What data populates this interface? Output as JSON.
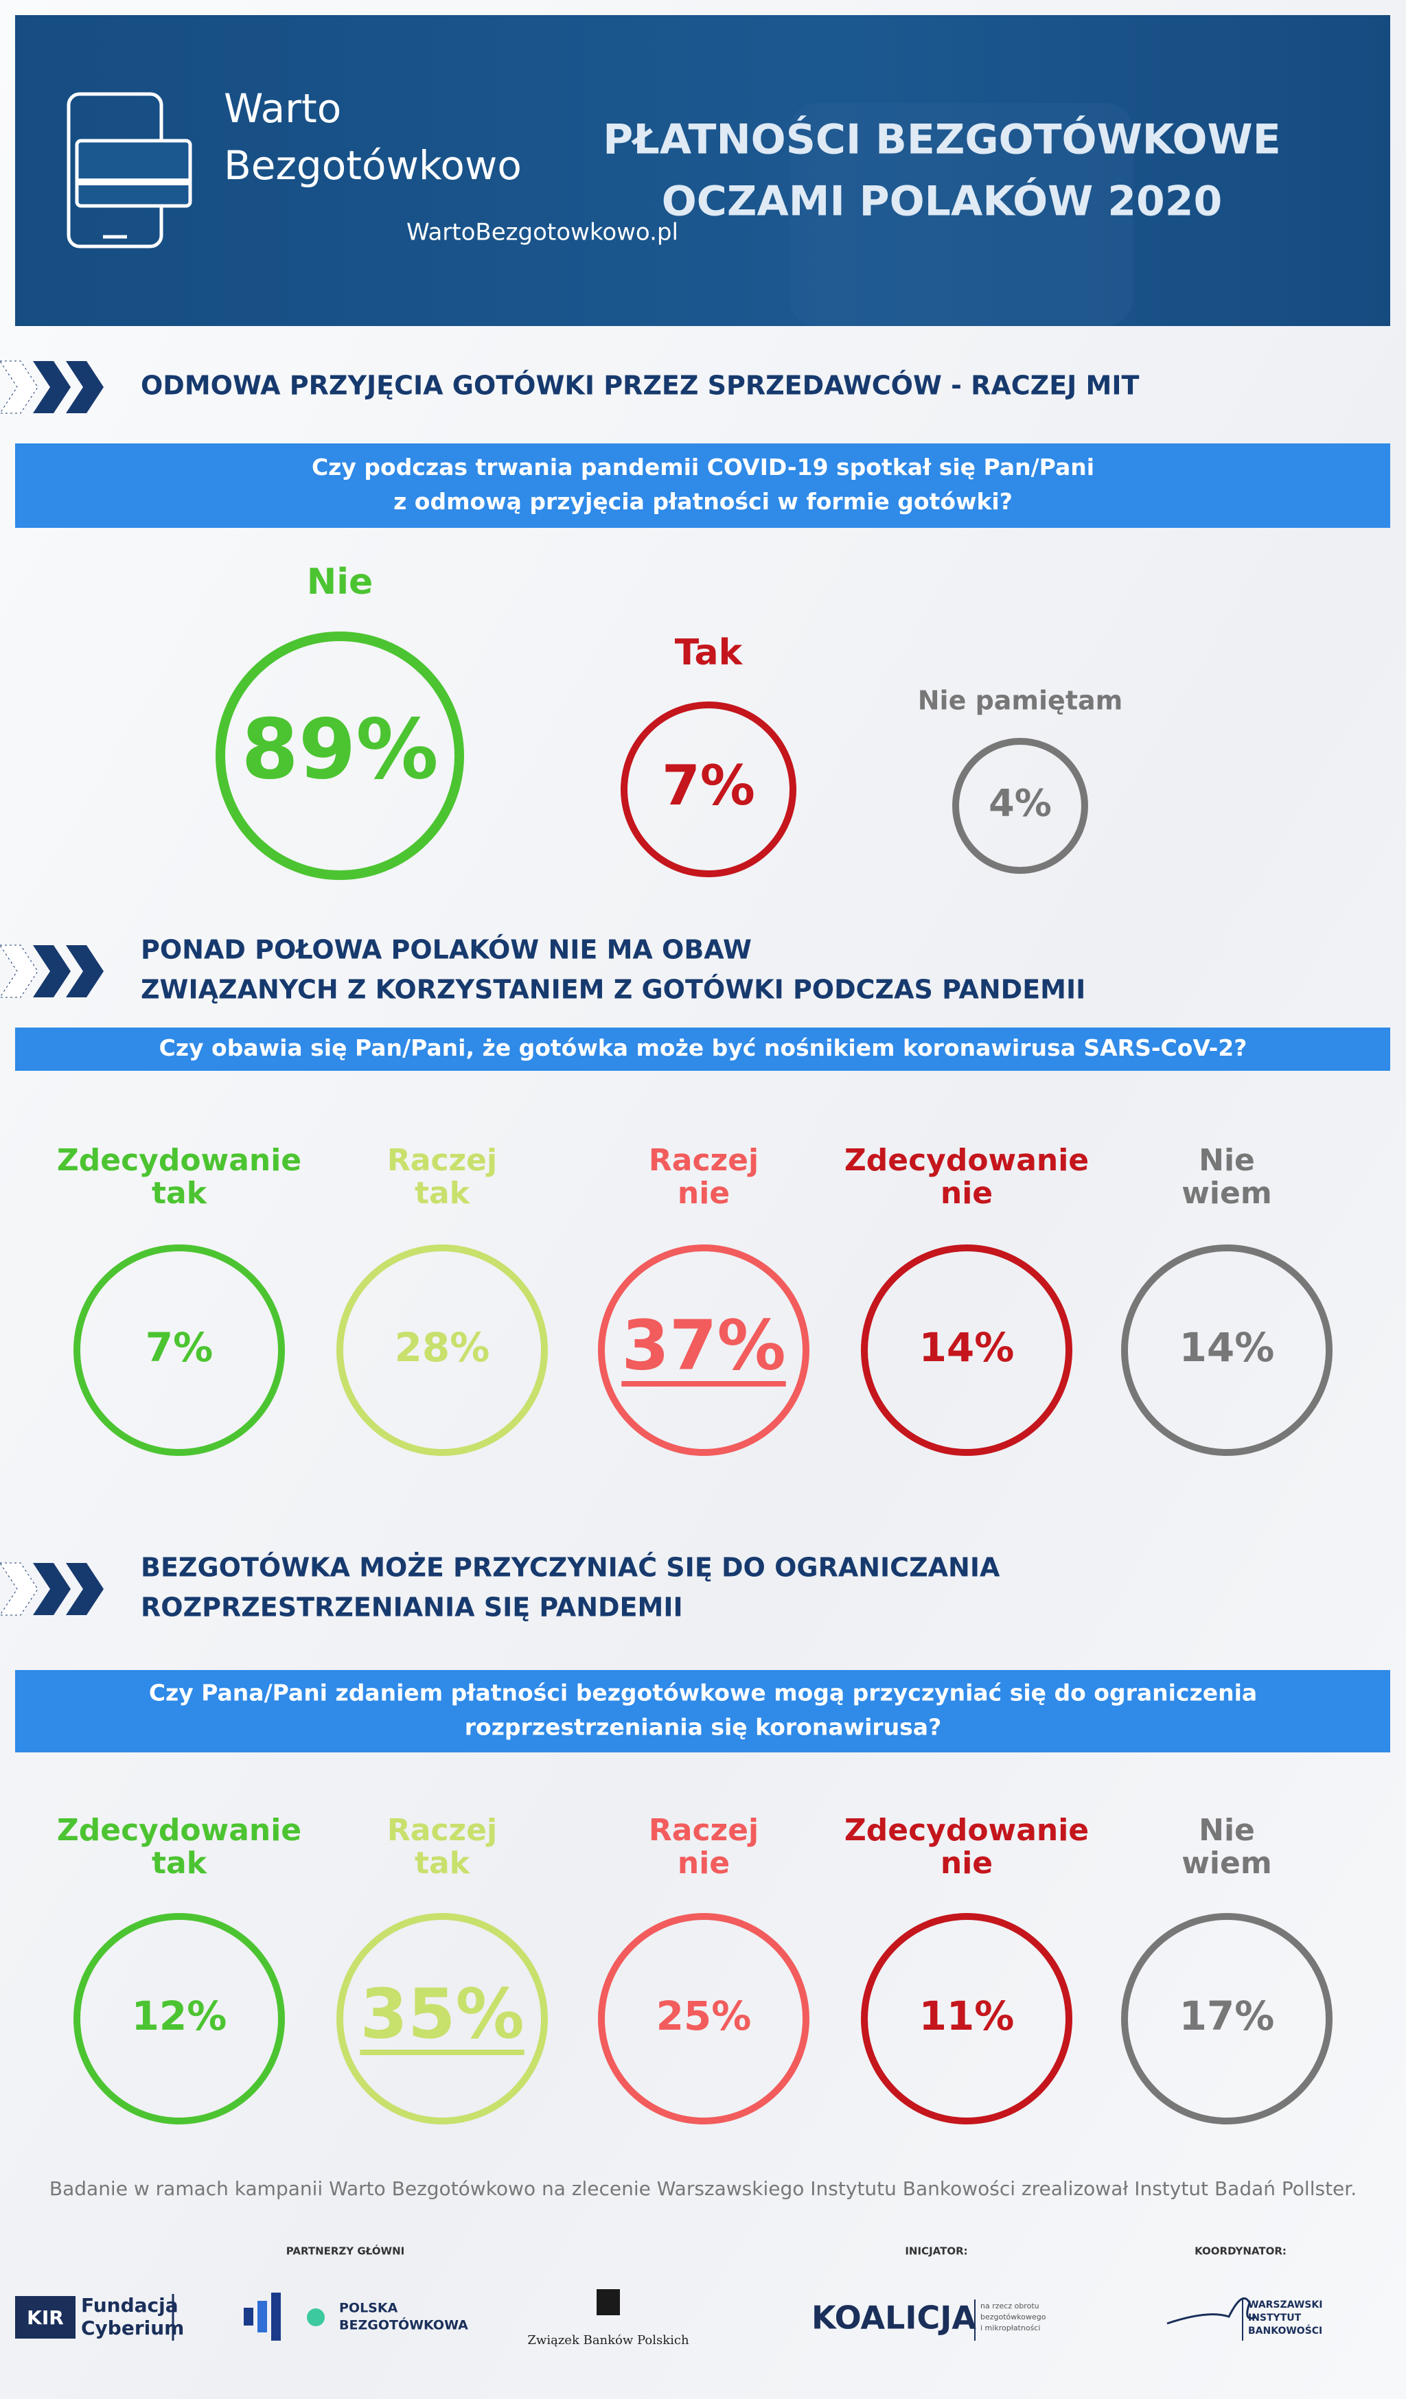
{
  "header": {
    "logo_line1": "Warto",
    "logo_line2": "Bezgotówkowo",
    "url": "WartoBezgotowkowo.pl",
    "title_lines": [
      "PŁATNOŚCI BEZGOTÓWKOWE",
      "OCZAMI POLAKÓW 2020"
    ]
  },
  "sections": [
    {
      "heading": [
        "ODMOWA PRZYJĘCIA GOTÓWKI PRZEZ SPRZEDAWCÓW - RACZEJ MIT"
      ],
      "question": [
        "Czy podczas trwania pandemii COVID-19  spotkał się Pan/Pani",
        "z odmową przyjęcia płatności w formie gotówki?"
      ],
      "answers": [
        {
          "label": [
            "Nie"
          ],
          "value": "89%",
          "color": "#4cc431"
        },
        {
          "label": [
            "Tak"
          ],
          "value": "7%",
          "color": "#c4161c"
        },
        {
          "label": [
            "Nie pamiętam"
          ],
          "value": "4%",
          "color": "#777777"
        }
      ]
    },
    {
      "heading": [
        "PONAD POŁOWA POLAKÓW NIE MA OBAW",
        "ZWIĄZANYCH Z KORZYSTANIEM Z GOTÓWKI PODCZAS PANDEMII"
      ],
      "question": [
        "Czy obawia się Pan/Pani, że gotówka może być nośnikiem koronawirusa SARS-CoV-2?"
      ],
      "answers": [
        {
          "label": [
            "Zdecydowanie",
            "tak"
          ],
          "value": "7%",
          "color": "#4cc431"
        },
        {
          "label": [
            "Raczej",
            "tak"
          ],
          "value": "28%",
          "color": "#c8e06c"
        },
        {
          "label": [
            "Raczej",
            "nie"
          ],
          "value": "37%",
          "color": "#f25c5c",
          "emphasis": true
        },
        {
          "label": [
            "Zdecydowanie",
            "nie"
          ],
          "value": "14%",
          "color": "#c4161c"
        },
        {
          "label": [
            "Nie",
            "wiem"
          ],
          "value": "14%",
          "color": "#777777"
        }
      ]
    },
    {
      "heading": [
        "BEZGOTÓWKA MOŻE PRZYCZYNIAĆ SIĘ DO OGRANICZANIA",
        "ROZPRZESTRZENIANIA SIĘ PANDEMII"
      ],
      "question": [
        "Czy Pana/Pani zdaniem płatności bezgotówkowe mogą przyczyniać się do ograniczenia",
        "rozprzestrzeniania się koronawirusa?"
      ],
      "answers": [
        {
          "label": [
            "Zdecydowanie",
            "tak"
          ],
          "value": "12%",
          "color": "#4cc431"
        },
        {
          "label": [
            "Raczej",
            "tak"
          ],
          "value": "35%",
          "color": "#c8e06c",
          "emphasis": true
        },
        {
          "label": [
            "Raczej",
            "nie"
          ],
          "value": "25%",
          "color": "#f25c5c"
        },
        {
          "label": [
            "Zdecydowanie",
            "nie"
          ],
          "value": "11%",
          "color": "#c4161c"
        },
        {
          "label": [
            "Nie",
            "wiem"
          ],
          "value": "17%",
          "color": "#777777"
        }
      ]
    }
  ],
  "footnote": "Badanie w ramach kampanii Warto Bezgotówkowo na zlecenie Warszawskiego Instytutu Bankowości zrealizował Instytut Badań Pollster.",
  "partners": {
    "main_label": "PARTNERZY GŁÓWNI",
    "initiator_label": "INICJATOR:",
    "coordinator_label": "KOORDYNATOR:",
    "kir": "KIR",
    "cyberium": [
      "Fundacja",
      "Cyberium"
    ],
    "polska": [
      "POLSKA",
      "BEZGOTÓWKOWA"
    ],
    "zbp": "Związek Banków Polskich",
    "koalicja": "KOALICJA",
    "koalicja_sub": [
      "na rzecz obrotu",
      "bezgotówkowego",
      "i mikropłatności"
    ],
    "wib": [
      "WARSZAWSKI",
      "INSTYTUT",
      "BANKOWOŚCI"
    ]
  }
}
